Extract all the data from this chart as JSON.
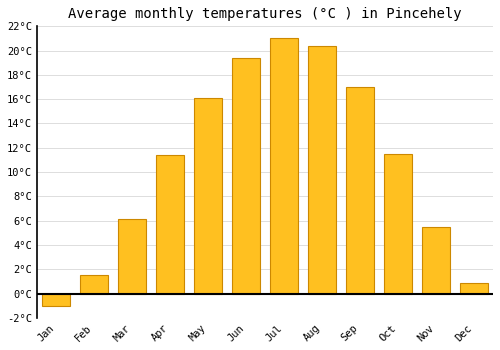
{
  "months": [
    "Jan",
    "Feb",
    "Mar",
    "Apr",
    "May",
    "Jun",
    "Jul",
    "Aug",
    "Sep",
    "Oct",
    "Nov",
    "Dec"
  ],
  "values": [
    -1.0,
    1.5,
    6.1,
    11.4,
    16.1,
    19.4,
    21.0,
    20.4,
    17.0,
    11.5,
    5.5,
    0.9
  ],
  "bar_color": "#FFC020",
  "bar_edge_color": "#CC8800",
  "title": "Average monthly temperatures (°C ) in Pincehely",
  "title_fontsize": 10,
  "ylim": [
    -2,
    22
  ],
  "yticks": [
    -2,
    0,
    2,
    4,
    6,
    8,
    10,
    12,
    14,
    16,
    18,
    20,
    22
  ],
  "background_color": "#ffffff",
  "grid_color": "#d8d8d8",
  "font_family": "monospace"
}
